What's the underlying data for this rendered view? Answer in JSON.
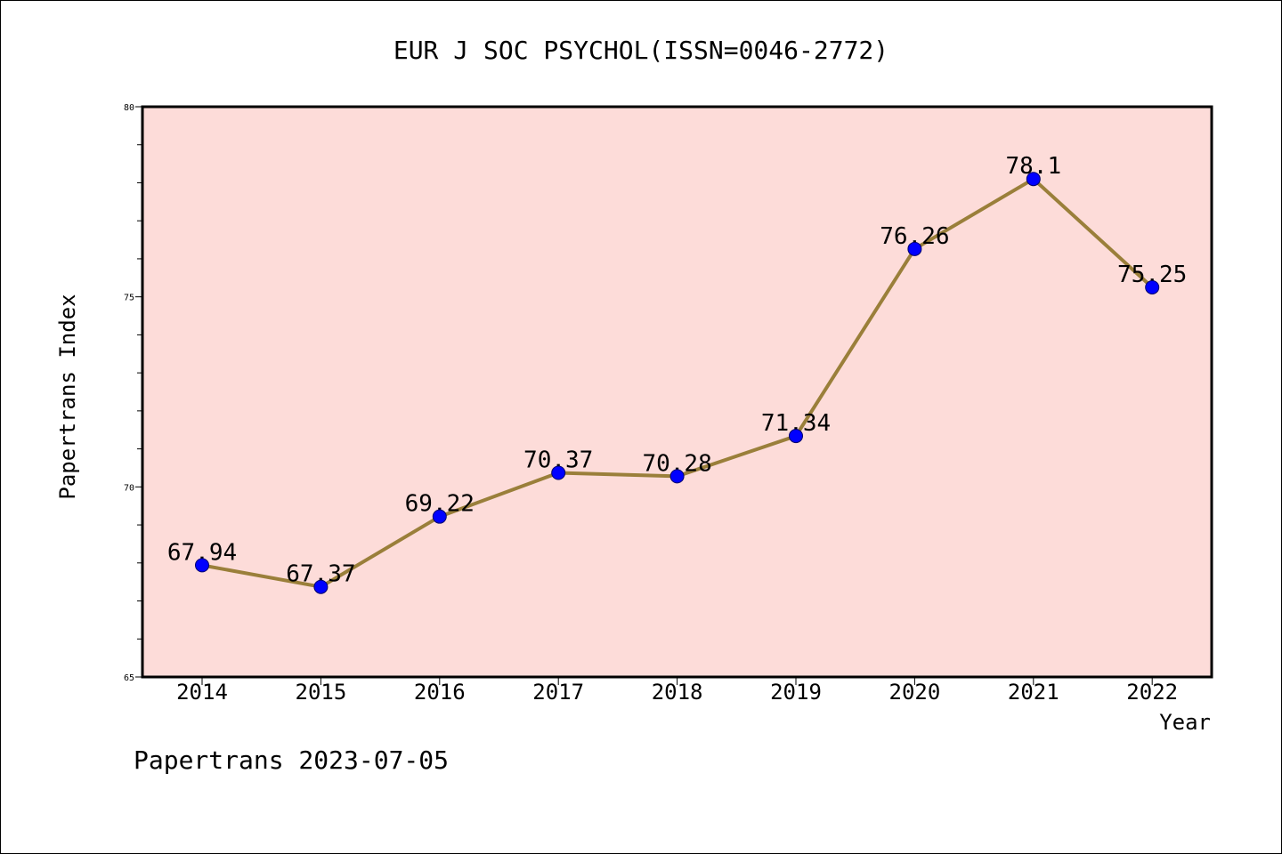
{
  "chart_data": {
    "type": "line",
    "title": "EUR J SOC PSYCHOL(ISSN=0046-2772)",
    "xlabel": "Year",
    "ylabel": "Papertrans Index",
    "x": [
      "2014",
      "2015",
      "2016",
      "2017",
      "2018",
      "2019",
      "2020",
      "2021",
      "2022"
    ],
    "values": [
      67.94,
      67.37,
      69.22,
      70.37,
      70.28,
      71.34,
      76.26,
      78.1,
      75.25
    ],
    "labels": [
      "67.94",
      "67.37",
      "69.22",
      "70.37",
      "70.28",
      "71.34",
      "76.26",
      "78.1",
      "75.25"
    ],
    "ylim": [
      65,
      80
    ],
    "yticks": [
      "65",
      "70",
      "75",
      "80"
    ],
    "grid": false,
    "colors": {
      "plot_background": "#fddcd9",
      "line": "#9a7f3a",
      "marker": "#0000ff"
    }
  },
  "footer": "Papertrans 2023-07-05"
}
